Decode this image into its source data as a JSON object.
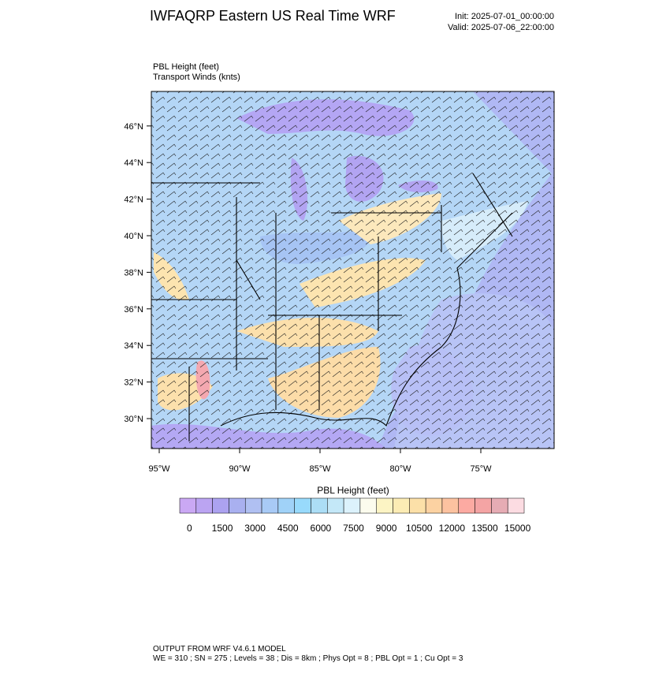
{
  "header": {
    "title": "IWFAQRP Eastern US Real Time WRF",
    "init": "Init: 2025-07-01_00:00:00",
    "valid": "Valid: 2025-07-06_22:00:00"
  },
  "field": {
    "name": "PBL Height   (feet)",
    "vector": "Transport Winds   (knts)"
  },
  "map": {
    "lat_labels": [
      "30°N",
      "32°N",
      "34°N",
      "36°N",
      "38°N",
      "40°N",
      "42°N",
      "44°N",
      "46°N"
    ],
    "lon_labels": [
      "95°W",
      "90°W",
      "85°W",
      "80°W",
      "75°W"
    ]
  },
  "colorbar": {
    "title": "PBL Height  (feet)",
    "colors": [
      "#caa8f4",
      "#bba4f2",
      "#aca2f0",
      "#a9b0f0",
      "#b0c0f2",
      "#a8caf6",
      "#a0d2f8",
      "#98dafc",
      "#acdef6",
      "#c4e8f8",
      "#dcf2fc",
      "#fcfcee",
      "#fcf4c4",
      "#fcecb4",
      "#fce0a8",
      "#fcd2a2",
      "#fcc2a0",
      "#fcaaa2",
      "#f4a4a4",
      "#e6acb4",
      "#fcdce2"
    ],
    "labels": [
      "0",
      "1500",
      "3000",
      "4500",
      "6000",
      "7500",
      "9000",
      "10500",
      "12000",
      "13500",
      "15000"
    ]
  },
  "footer": {
    "line1": "OUTPUT FROM WRF V4.6.1 MODEL",
    "line2": "WE = 310 ; SN = 275 ; Levels = 38 ; Dis = 8km ; Phys Opt = 8 ; PBL Opt = 1 ; Cu Opt = 3"
  }
}
